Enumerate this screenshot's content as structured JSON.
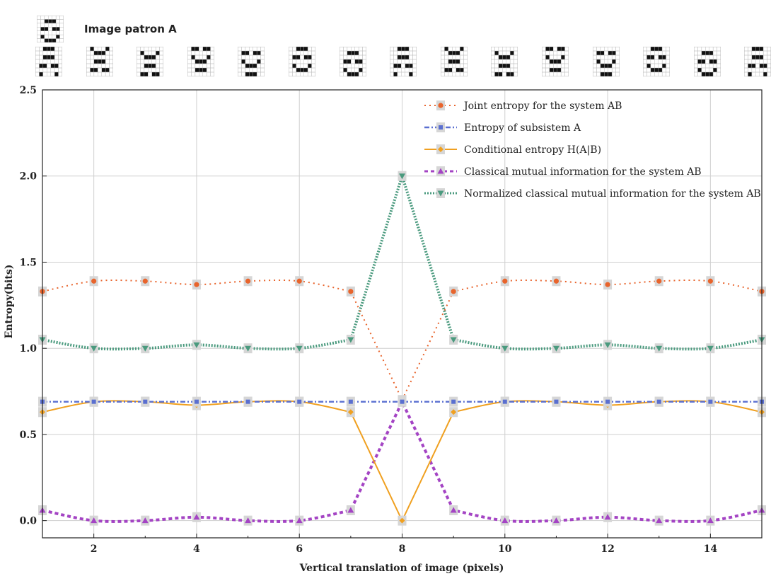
{
  "header": {
    "pattern_label": "Image patron A",
    "pattern_icon": "pixel-face-pattern-icon",
    "translation_thumbnails": 15
  },
  "colors": {
    "joint": "#e8642c",
    "entropy_a": "#5a6fd0",
    "conditional": "#f0a020",
    "mutual": "#a444c4",
    "normalized": "#4a9a7e",
    "marker_box": "#d6d6d6"
  },
  "chart_data": {
    "type": "line",
    "title": "",
    "xlabel": "Vertical translation of image (pixels)",
    "ylabel": "Entropy(bits)",
    "xlim": [
      1,
      15
    ],
    "ylim": [
      -0.1,
      2.5
    ],
    "xticks": [
      2,
      4,
      6,
      8,
      10,
      12,
      14
    ],
    "yticks": [
      0.0,
      0.5,
      1.0,
      1.5,
      2.0,
      2.5
    ],
    "ytick_labels": [
      "0.0",
      "0.5",
      "1.0",
      "1.5",
      "2.0",
      "2.5"
    ],
    "grid": true,
    "legend_position": "top-right",
    "x": [
      1,
      2,
      3,
      4,
      5,
      6,
      7,
      8,
      9,
      10,
      11,
      12,
      13,
      14,
      15
    ],
    "series": [
      {
        "name": "Joint entropy for the system AB",
        "style": "dotted",
        "marker": "circle",
        "color_key": "joint",
        "values": [
          1.33,
          1.39,
          1.39,
          1.37,
          1.39,
          1.39,
          1.33,
          0.7,
          1.33,
          1.39,
          1.39,
          1.37,
          1.39,
          1.39,
          1.33
        ]
      },
      {
        "name": "Entropy of subsistem A",
        "style": "dashdot",
        "marker": "square",
        "color_key": "entropy_a",
        "values": [
          0.69,
          0.69,
          0.69,
          0.69,
          0.69,
          0.69,
          0.69,
          0.69,
          0.69,
          0.69,
          0.69,
          0.69,
          0.69,
          0.69,
          0.69
        ]
      },
      {
        "name": "Conditional entropy H(A|B)",
        "style": "solid",
        "marker": "diamond",
        "color_key": "conditional",
        "values": [
          0.63,
          0.69,
          0.69,
          0.67,
          0.69,
          0.69,
          0.63,
          0.0,
          0.63,
          0.69,
          0.69,
          0.67,
          0.69,
          0.69,
          0.63
        ]
      },
      {
        "name": "Classical mutual information for the system AB",
        "style": "dashed",
        "marker": "triangle-up",
        "color_key": "mutual",
        "values": [
          0.06,
          0.0,
          0.0,
          0.02,
          0.0,
          0.0,
          0.06,
          0.69,
          0.06,
          0.0,
          0.0,
          0.02,
          0.0,
          0.0,
          0.06
        ]
      },
      {
        "name": "Normalized classical mutual information for the system AB",
        "style": "dotted",
        "marker": "triangle-down",
        "color_key": "normalized",
        "values": [
          1.05,
          1.0,
          1.0,
          1.02,
          1.0,
          1.0,
          1.05,
          2.0,
          1.05,
          1.0,
          1.0,
          1.02,
          1.0,
          1.0,
          1.05
        ]
      }
    ]
  }
}
